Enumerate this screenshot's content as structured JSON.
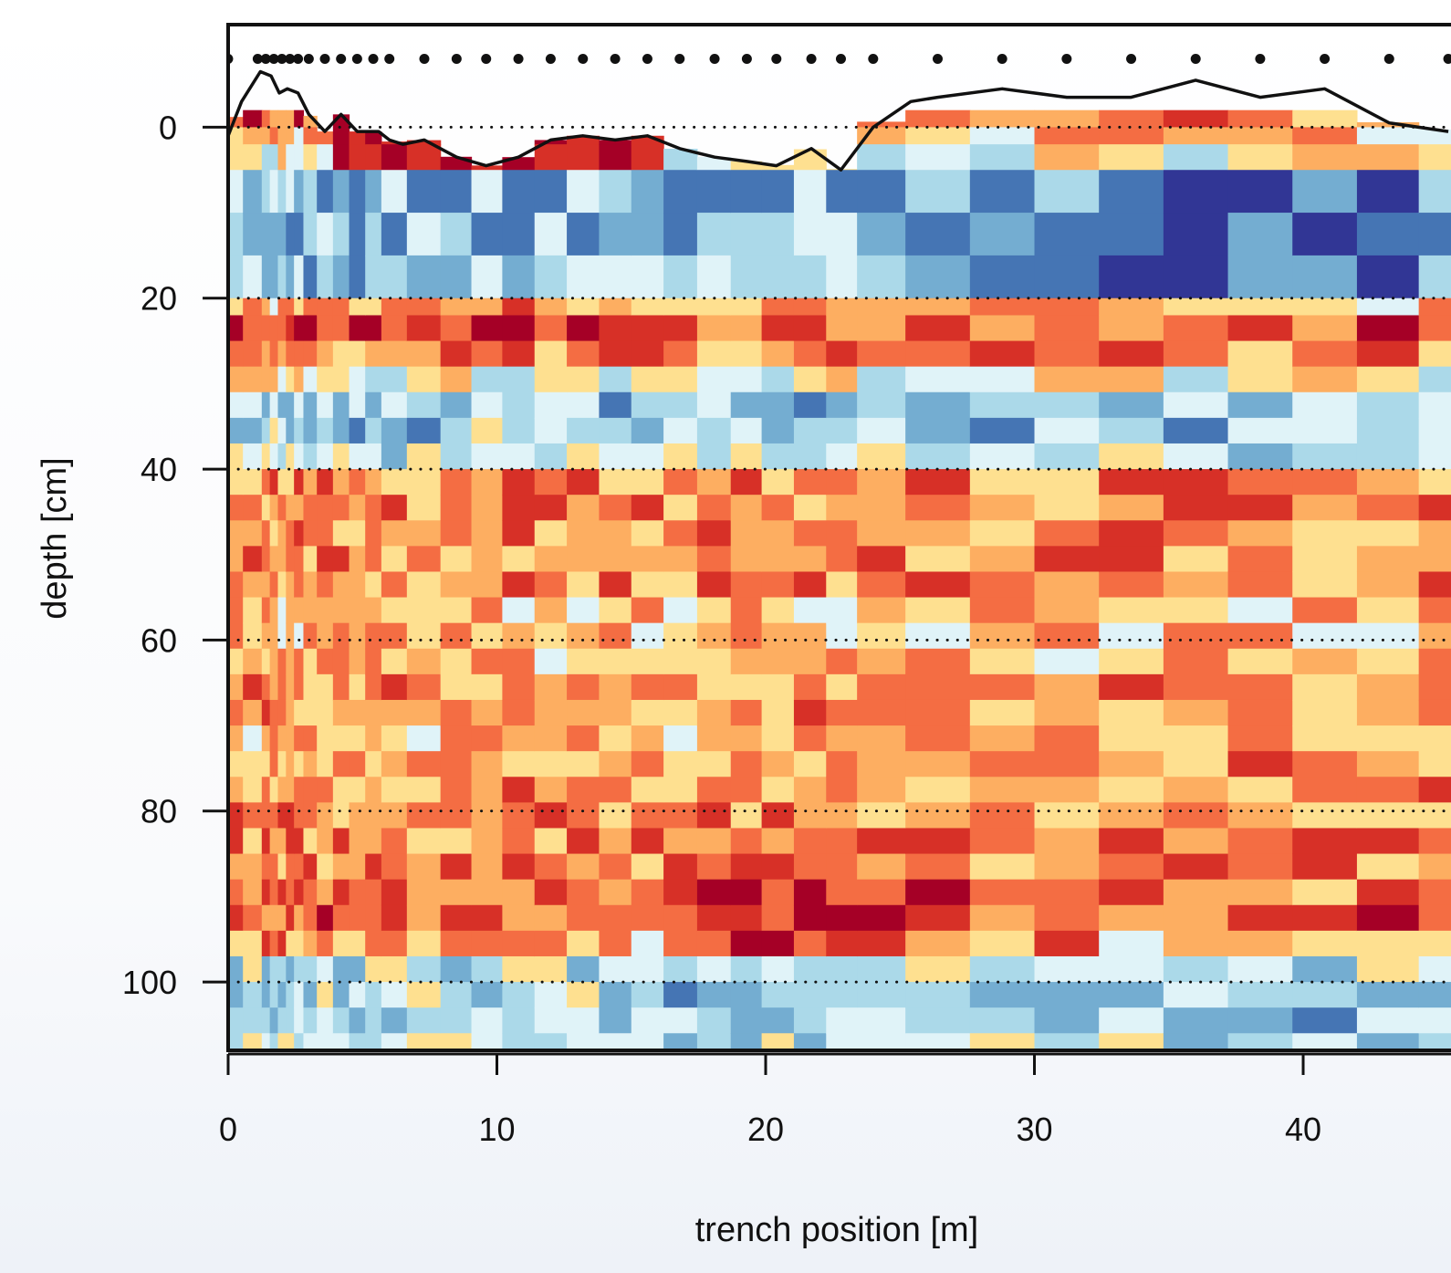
{
  "chart_data": {
    "type": "heatmap",
    "title": "",
    "xlabel": "trench position [m]",
    "ylabel": "depth [cm]",
    "xlim": [
      0,
      45.5
    ],
    "ylim": [
      108,
      -12
    ],
    "y_reversed": true,
    "x_ticks": [
      "0",
      "10",
      "20",
      "30",
      "40"
    ],
    "x_tick_values": [
      0,
      10,
      20,
      30,
      40
    ],
    "y_ticks": [
      "0",
      "20",
      "40",
      "60",
      "80",
      "100"
    ],
    "y_tick_values": [
      0,
      20,
      40,
      60,
      80,
      100
    ],
    "grid": "dotted horizontal lines at 0, 20, 40, 60, 80, 100 cm",
    "colormap": [
      "#313695",
      "#4575b4",
      "#74add1",
      "#abd9e9",
      "#e0f3f8",
      "#fee090",
      "#fdae61",
      "#f46d43",
      "#d73027",
      "#a50026"
    ],
    "value_range": [
      -1,
      1
    ],
    "sample_positions": [
      0.0,
      1.1,
      1.4,
      1.7,
      2.0,
      2.3,
      2.6,
      3.0,
      3.6,
      4.2,
      4.8,
      5.4,
      6.0,
      7.3,
      8.5,
      9.6,
      10.8,
      12.0,
      13.2,
      14.4,
      15.6,
      16.8,
      18.1,
      19.3,
      20.4,
      21.7,
      22.8,
      24.0,
      26.4,
      28.8,
      31.2,
      33.6,
      36.0,
      38.4,
      40.8,
      43.2,
      45.4
    ],
    "surface_line": {
      "x": [
        0,
        0.5,
        1.2,
        1.6,
        1.9,
        2.2,
        2.6,
        3.0,
        3.6,
        4.2,
        4.8,
        5.6,
        6.0,
        6.5,
        7.3,
        8.5,
        9.6,
        10.8,
        12.0,
        13.2,
        14.4,
        15.6,
        16.8,
        18.1,
        19.3,
        20.4,
        21.7,
        22.8,
        24.0,
        25.4,
        26.4,
        28.8,
        31.2,
        33.6,
        36.0,
        38.4,
        40.8,
        43.2,
        45.4
      ],
      "y": [
        1,
        -3,
        -6.5,
        -6,
        -4,
        -4.5,
        -4,
        -1.5,
        0.5,
        -1.5,
        0.5,
        0.5,
        1.5,
        2,
        1.5,
        3.5,
        4.5,
        3.5,
        1.5,
        1,
        1.5,
        1,
        2.5,
        3.5,
        4,
        4.5,
        2.5,
        5,
        0,
        -3,
        -3.5,
        -4.5,
        -3.5,
        -3.5,
        -5.5,
        -3.5,
        -4.5,
        -0.5,
        0.5
      ]
    }
  }
}
